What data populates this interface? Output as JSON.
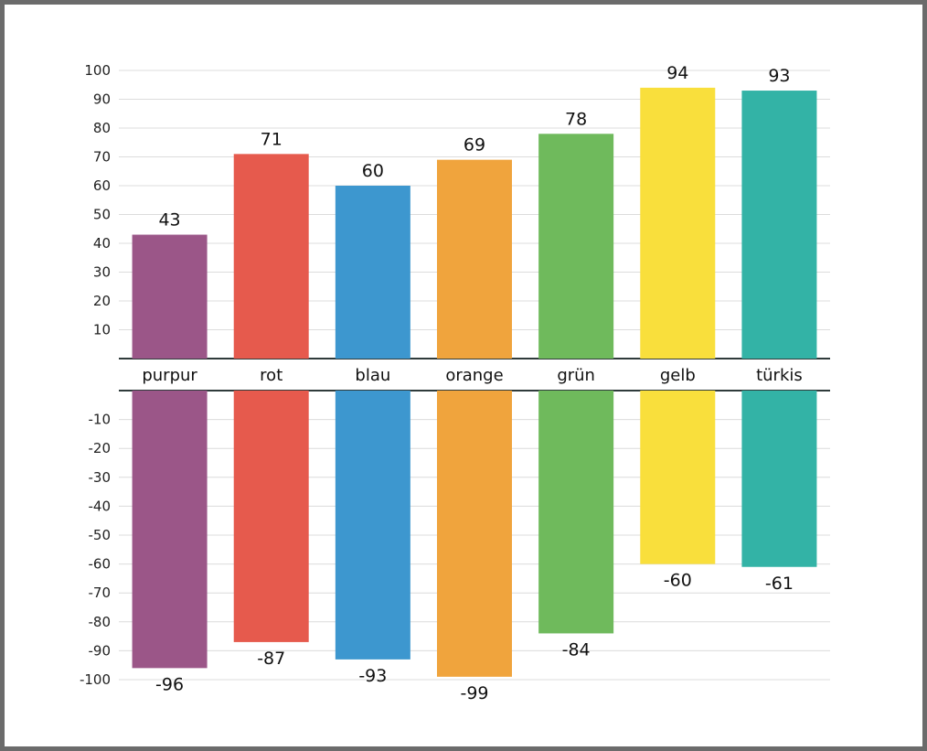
{
  "chart_data": {
    "type": "bar",
    "title": "",
    "xlabel": "",
    "ylabel": "",
    "categories": [
      "purpur",
      "rot",
      "blau",
      "orange",
      "grün",
      "gelb",
      "türkis"
    ],
    "colors": [
      "#9b5688",
      "#e65a4d",
      "#3d97cf",
      "#f0a43d",
      "#6fba5c",
      "#f9df3c",
      "#33b3a6"
    ],
    "series": [
      {
        "name": "positive",
        "values": [
          43,
          71,
          60,
          69,
          78,
          94,
          93
        ]
      },
      {
        "name": "negative",
        "values": [
          -96,
          -87,
          -93,
          -99,
          -84,
          -60,
          -61
        ]
      }
    ],
    "upper_ticks": [
      "10",
      "20",
      "30",
      "40",
      "50",
      "60",
      "70",
      "80",
      "90",
      "100"
    ],
    "lower_ticks": [
      "-10",
      "-20",
      "-30",
      "-40",
      "-50",
      "-60",
      "-70",
      "-80",
      "-90",
      "-100"
    ],
    "ylim_upper": [
      0,
      100
    ],
    "ylim_lower": [
      -100,
      0
    ],
    "grid": true
  }
}
